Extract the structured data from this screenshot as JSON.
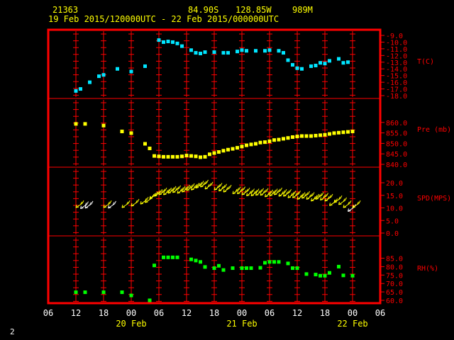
{
  "header": {
    "station": "21363",
    "lat": "84.90S",
    "lon": "128.85W",
    "alt": "989M",
    "range": "19 Feb 2015/120000UTC - 22 Feb 2015/000000UTC"
  },
  "page_number": "2",
  "colors": {
    "frame": "#ff0000",
    "grid": "#ff0000",
    "axis_text": "#ffffff",
    "date_text": "#ffff00",
    "temperature": "#00e5ff",
    "pressure": "#ffff00",
    "wind_strong": "#ffff00",
    "wind_weak": "#ffffff",
    "humidity": "#00ff00"
  },
  "x_axis": {
    "tick_labels": [
      "06",
      "12",
      "18",
      "00",
      "06",
      "12",
      "18",
      "00",
      "06",
      "12",
      "18",
      "00",
      "06"
    ],
    "date_labels": [
      {
        "text": "20 Feb",
        "hours": 18
      },
      {
        "text": "21 Feb",
        "hours": 42
      },
      {
        "text": "22 Feb",
        "hours": 66
      }
    ],
    "start": "19 Feb 2015 06UTC",
    "range_hours": [
      0,
      72
    ]
  },
  "chart_data": [
    {
      "type": "scatter",
      "label": "T(C)",
      "ylim": [
        -18,
        -9
      ],
      "ticks": [
        "-9.0",
        "-10.0",
        "-11.0",
        "-12.0",
        "-13.0",
        "-14.0",
        "-15.0",
        "-16.0",
        "-17.0",
        "-18.0"
      ],
      "x": [
        "19 Feb 12UTC",
        "19 Feb 13UTC",
        "19 Feb 15UTC",
        "19 Feb 17UTC",
        "19 Feb 18UTC",
        "19 Feb 21UTC",
        "20 Feb 00UTC",
        "20 Feb 03UTC",
        "20 Feb 06UTC",
        "20 Feb 07UTC",
        "20 Feb 08UTC",
        "20 Feb 09UTC",
        "20 Feb 10UTC",
        "20 Feb 11UTC",
        "20 Feb 13UTC",
        "20 Feb 14UTC",
        "20 Feb 15UTC",
        "20 Feb 16UTC",
        "20 Feb 18UTC",
        "20 Feb 20UTC",
        "20 Feb 21UTC",
        "20 Feb 23UTC",
        "21 Feb 00UTC",
        "21 Feb 01UTC",
        "21 Feb 03UTC",
        "21 Feb 05UTC",
        "21 Feb 06UTC",
        "21 Feb 08UTC",
        "21 Feb 09UTC",
        "21 Feb 10UTC",
        "21 Feb 11UTC",
        "21 Feb 12UTC",
        "21 Feb 13UTC",
        "21 Feb 15UTC",
        "21 Feb 16UTC",
        "21 Feb 17UTC",
        "21 Feb 18UTC",
        "21 Feb 19UTC",
        "21 Feb 21UTC",
        "21 Feb 22UTC",
        "21 Feb 23UTC"
      ],
      "values": [
        -17.3,
        -17.0,
        -16.0,
        -15.1,
        -14.9,
        -14.0,
        -14.4,
        -13.6,
        -9.7,
        -10.0,
        -9.9,
        -10.0,
        -10.2,
        -10.6,
        -11.2,
        -11.6,
        -11.7,
        -11.5,
        -11.5,
        -11.6,
        -11.6,
        -11.4,
        -11.2,
        -11.3,
        -11.3,
        -11.3,
        -11.2,
        -11.3,
        -11.6,
        -12.7,
        -13.4,
        -13.9,
        -14.0,
        -13.6,
        -13.5,
        -13.1,
        -13.2,
        -12.8,
        -12.5,
        -13.1,
        -13.0
      ]
    },
    {
      "type": "scatter",
      "label": "Pre (mb)",
      "ylim": [
        840,
        864
      ],
      "ticks": [
        "860.0",
        "855.0",
        "850.0",
        "845.0",
        "840.0"
      ],
      "x": [
        "19 Feb 12UTC",
        "19 Feb 14UTC",
        "19 Feb 18UTC",
        "19 Feb 22UTC",
        "20 Feb 00UTC",
        "20 Feb 03UTC",
        "20 Feb 04UTC",
        "20 Feb 05UTC",
        "20 Feb 06UTC",
        "20 Feb 07UTC",
        "20 Feb 08UTC",
        "20 Feb 09UTC",
        "20 Feb 10UTC",
        "20 Feb 11UTC",
        "20 Feb 12UTC",
        "20 Feb 13UTC",
        "20 Feb 14UTC",
        "20 Feb 15UTC",
        "20 Feb 16UTC",
        "20 Feb 17UTC",
        "20 Feb 18UTC",
        "20 Feb 19UTC",
        "20 Feb 20UTC",
        "20 Feb 21UTC",
        "20 Feb 22UTC",
        "20 Feb 23UTC",
        "21 Feb 00UTC",
        "21 Feb 01UTC",
        "21 Feb 02UTC",
        "21 Feb 03UTC",
        "21 Feb 04UTC",
        "21 Feb 05UTC",
        "21 Feb 06UTC",
        "21 Feb 07UTC",
        "21 Feb 08UTC",
        "21 Feb 09UTC",
        "21 Feb 10UTC",
        "21 Feb 11UTC",
        "21 Feb 12UTC",
        "21 Feb 13UTC",
        "21 Feb 14UTC",
        "21 Feb 15UTC",
        "21 Feb 16UTC",
        "21 Feb 17UTC",
        "21 Feb 18UTC",
        "21 Feb 19UTC",
        "21 Feb 20UTC",
        "21 Feb 21UTC",
        "21 Feb 22UTC",
        "21 Feb 23UTC",
        "22 Feb 00UTC"
      ],
      "values": [
        859.3,
        859.3,
        858.5,
        855.7,
        854.9,
        849.8,
        847.6,
        844.0,
        843.8,
        843.6,
        843.6,
        843.6,
        843.6,
        843.8,
        844.2,
        844.0,
        843.8,
        843.4,
        843.6,
        844.8,
        845.4,
        845.9,
        846.5,
        847.0,
        847.4,
        847.9,
        848.5,
        849.1,
        849.5,
        849.8,
        850.4,
        850.6,
        851.0,
        851.6,
        851.8,
        852.2,
        852.6,
        853.0,
        853.3,
        853.5,
        853.5,
        853.5,
        853.7,
        853.9,
        854.1,
        854.5,
        854.9,
        855.1,
        855.3,
        855.5,
        855.7
      ]
    },
    {
      "type": "scatter",
      "label": "SPD(MPS)",
      "ylim": [
        0,
        20
      ],
      "ticks": [
        "20.0",
        "15.0",
        "10.0",
        "5.0",
        "0.0"
      ],
      "marker": "wind barbs",
      "x": [
        "19 Feb 12UTC",
        "19 Feb 13UTC",
        "19 Feb 14UTC",
        "19 Feb 18UTC",
        "19 Feb 19UTC",
        "19 Feb 22UTC",
        "20 Feb 00UTC",
        "20 Feb 02UTC",
        "20 Feb 03UTC",
        "20 Feb 04UTC",
        "20 Feb 05UTC",
        "20 Feb 06UTC",
        "20 Feb 07UTC",
        "20 Feb 08UTC",
        "20 Feb 09UTC",
        "20 Feb 10UTC",
        "20 Feb 11UTC",
        "20 Feb 12UTC",
        "20 Feb 13UTC",
        "20 Feb 14UTC",
        "20 Feb 15UTC",
        "20 Feb 16UTC",
        "20 Feb 18UTC",
        "20 Feb 19UTC",
        "20 Feb 20UTC",
        "20 Feb 22UTC",
        "20 Feb 23UTC",
        "21 Feb 00UTC",
        "21 Feb 01UTC",
        "21 Feb 02UTC",
        "21 Feb 03UTC",
        "21 Feb 04UTC",
        "21 Feb 05UTC",
        "21 Feb 06UTC",
        "21 Feb 07UTC",
        "21 Feb 08UTC",
        "21 Feb 09UTC",
        "21 Feb 10UTC",
        "21 Feb 11UTC",
        "21 Feb 12UTC",
        "21 Feb 13UTC",
        "21 Feb 14UTC",
        "21 Feb 15UTC",
        "21 Feb 16UTC",
        "21 Feb 17UTC",
        "21 Feb 18UTC",
        "21 Feb 19UTC",
        "21 Feb 20UTC",
        "21 Feb 21UTC",
        "21 Feb 22UTC",
        "21 Feb 23UTC",
        "22 Feb 00UTC"
      ],
      "values": [
        10.1,
        9.7,
        9.9,
        10.1,
        9.9,
        10.1,
        10.7,
        11.5,
        12.1,
        13.6,
        14.6,
        15.2,
        15.2,
        15.8,
        16.1,
        15.8,
        16.3,
        16.9,
        17.1,
        17.9,
        18.3,
        17.5,
        17.1,
        16.7,
        16.3,
        15.6,
        15.6,
        15.2,
        14.8,
        14.8,
        15.0,
        15.0,
        14.4,
        14.8,
        15.2,
        14.6,
        14.6,
        14.0,
        14.0,
        13.4,
        13.8,
        13.4,
        12.7,
        13.4,
        13.1,
        12.7,
        10.9,
        12.1,
        11.3,
        10.1,
        8.6,
        10.1
      ]
    },
    {
      "type": "scatter",
      "label": "RH(%)",
      "ylim": [
        60,
        89
      ],
      "ticks": [
        "85.0",
        "80.0",
        "75.0",
        "70.0",
        "65.0",
        "60.0"
      ],
      "x": [
        "19 Feb 12UTC",
        "19 Feb 14UTC",
        "19 Feb 18UTC",
        "19 Feb 22UTC",
        "20 Feb 00UTC",
        "20 Feb 04UTC",
        "20 Feb 05UTC",
        "20 Feb 07UTC",
        "20 Feb 08UTC",
        "20 Feb 09UTC",
        "20 Feb 10UTC",
        "20 Feb 13UTC",
        "20 Feb 14UTC",
        "20 Feb 15UTC",
        "20 Feb 16UTC",
        "20 Feb 18UTC",
        "20 Feb 19UTC",
        "20 Feb 20UTC",
        "20 Feb 22UTC",
        "21 Feb 00UTC",
        "21 Feb 01UTC",
        "21 Feb 02UTC",
        "21 Feb 04UTC",
        "21 Feb 05UTC",
        "21 Feb 06UTC",
        "21 Feb 07UTC",
        "21 Feb 08UTC",
        "21 Feb 10UTC",
        "21 Feb 11UTC",
        "21 Feb 12UTC",
        "21 Feb 14UTC",
        "21 Feb 16UTC",
        "21 Feb 17UTC",
        "21 Feb 18UTC",
        "21 Feb 19UTC",
        "21 Feb 21UTC",
        "21 Feb 22UTC",
        "22 Feb 00UTC"
      ],
      "values": [
        64.8,
        64.8,
        64.8,
        64.8,
        62.9,
        60.0,
        80.7,
        85.5,
        85.5,
        85.5,
        85.5,
        84.3,
        83.6,
        82.8,
        79.8,
        79.1,
        80.5,
        78.0,
        79.1,
        79.1,
        79.1,
        79.1,
        79.3,
        82.3,
        82.8,
        82.8,
        82.8,
        81.9,
        79.1,
        79.1,
        75.6,
        75.3,
        74.6,
        74.6,
        76.3,
        80.0,
        74.8,
        74.6
      ]
    }
  ]
}
